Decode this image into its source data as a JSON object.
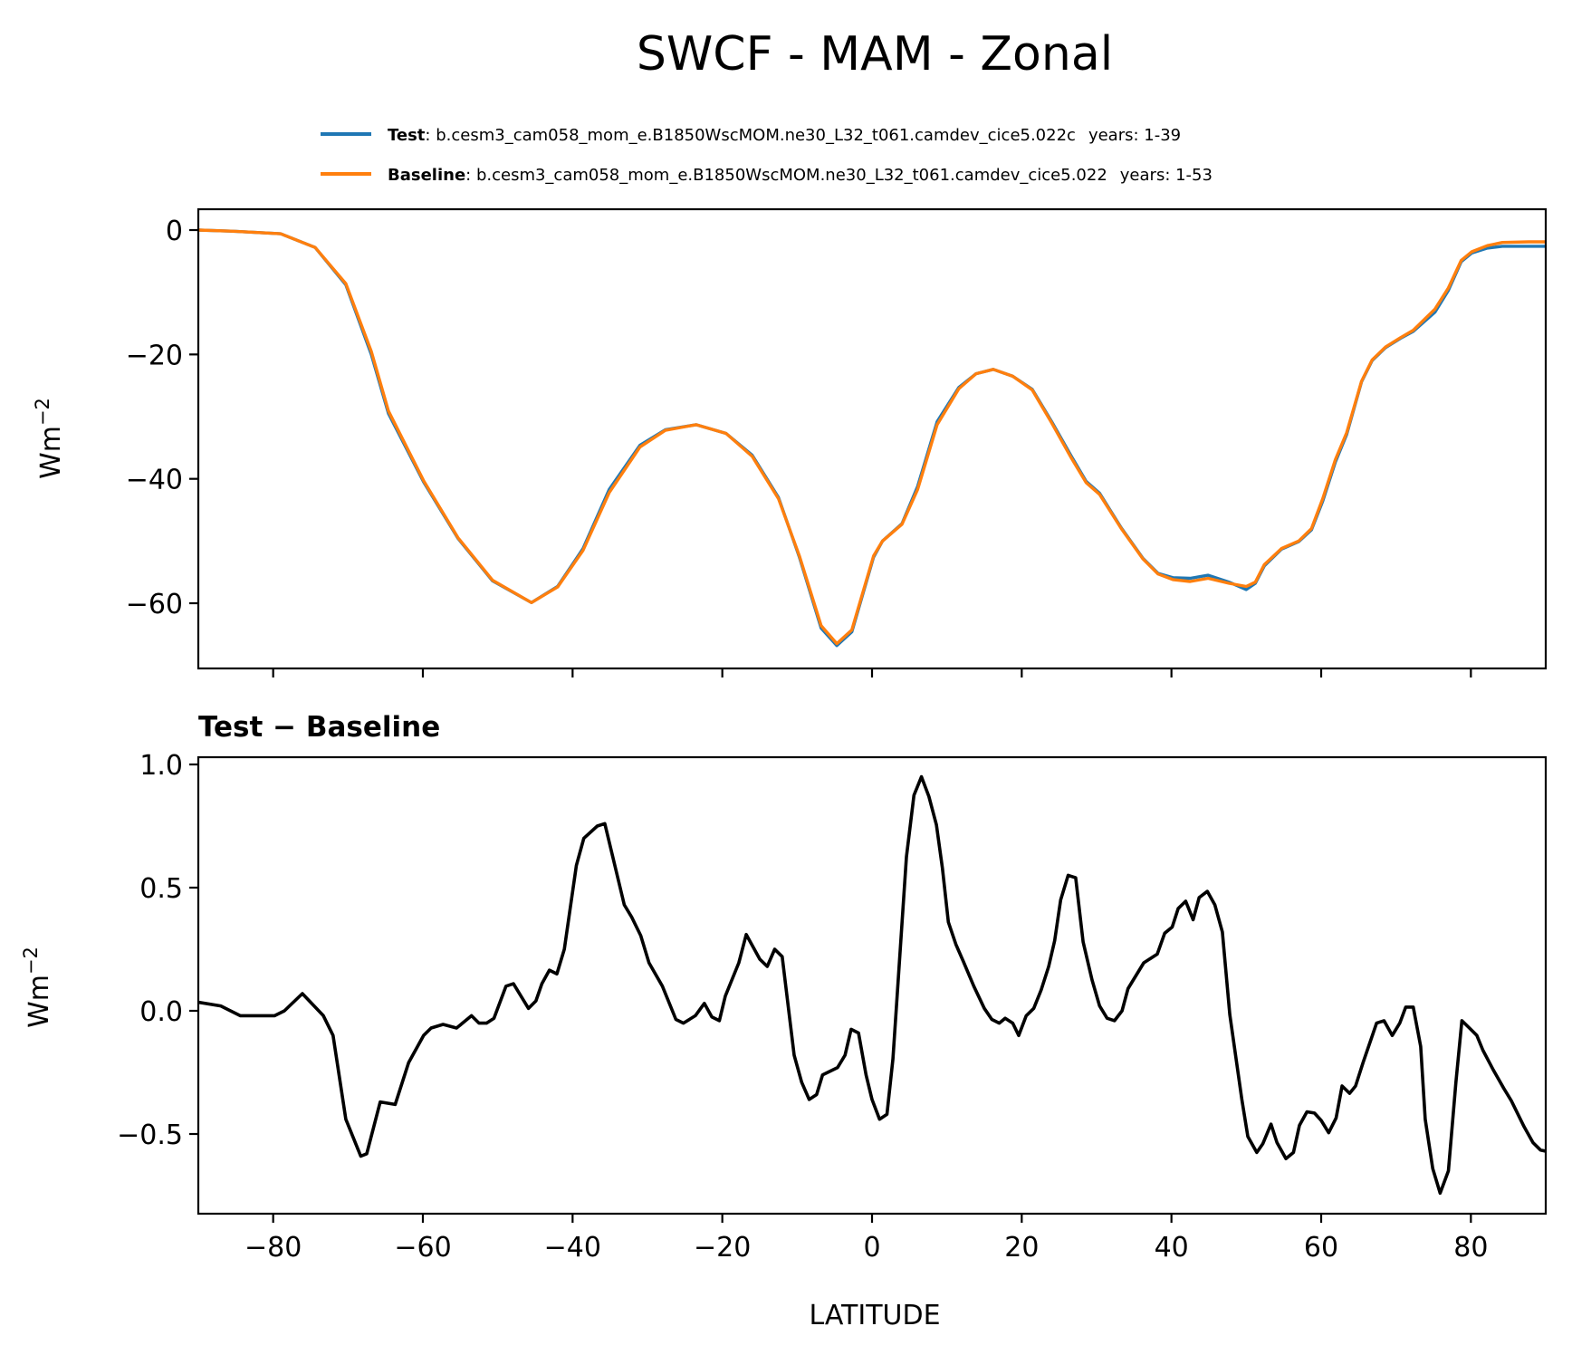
{
  "chart_data": [
    {
      "type": "line",
      "title": "SWCF - MAM - Zonal",
      "xlabel": "",
      "ylabel": "Wm^-2",
      "xlim": [
        -90,
        90
      ],
      "ylim": [
        -70,
        3
      ],
      "yticks": [
        0,
        -20,
        -40,
        -60
      ],
      "ytick_labels": [
        "0",
        "−20",
        "−40",
        "−60"
      ],
      "xticks": [
        -80,
        -60,
        -40,
        -20,
        0,
        20,
        40,
        60,
        80
      ],
      "show_xtick_labels": false,
      "grid": false,
      "legend": {
        "placement": "top-right",
        "entries": [
          {
            "name": "Test",
            "description": "b.cesm3_cam058_mom_e.B1850WscMOM.ne30_L32_t061.camdev_cice5.022c",
            "years": "years: 1-39",
            "color": "#1f77b4"
          },
          {
            "name": "Baseline",
            "description": "b.cesm3_cam058_mom_e.B1850WscMOM.ne30_L32_t061.camdev_cice5.022",
            "years": "years: 1-53",
            "color": "#ff7f0e"
          }
        ]
      },
      "series": [
        {
          "name": "Test",
          "color": "#1f77b4",
          "x": [
            -90,
            -85,
            -79,
            -74.4,
            -70.3,
            -66.9,
            -64.6,
            -59.9,
            -55.3,
            -50.7,
            -45.5,
            -42,
            -38.6,
            -35.1,
            -31,
            -27.6,
            -23.5,
            -19.5,
            -16,
            -12.5,
            -9.7,
            -6.8,
            -4.7,
            -2.7,
            0.2,
            1.4,
            4,
            6.1,
            8.7,
            11.6,
            13.9,
            16.2,
            18.8,
            21.4,
            24,
            26.6,
            28.6,
            30.4,
            33.3,
            36.2,
            38.2,
            40.2,
            42.5,
            44.9,
            47.7,
            50,
            51.2,
            52.4,
            54.7,
            57,
            58.7,
            60.2,
            61.9,
            63.4,
            65.4,
            66.8,
            68.6,
            70.6,
            72.3,
            75.2,
            77,
            78.7,
            80.1,
            82.2,
            84.2,
            87.7,
            90
          ],
          "y": [
            0,
            -0.2,
            -0.6,
            -2.8,
            -8.8,
            -20.0,
            -29.5,
            -40.5,
            -49.6,
            -56.4,
            -59.9,
            -57.3,
            -51.2,
            -41.7,
            -34.6,
            -32.1,
            -31.3,
            -32.7,
            -36.2,
            -43.0,
            -52.6,
            -64.0,
            -66.8,
            -64.6,
            -52.6,
            -50.0,
            -47.2,
            -41.2,
            -30.8,
            -25.3,
            -23.1,
            -22.4,
            -23.5,
            -25.6,
            -30.8,
            -36.3,
            -40.4,
            -42.3,
            -47.9,
            -52.8,
            -55.2,
            -55.9,
            -56.0,
            -55.5,
            -56.6,
            -57.8,
            -56.8,
            -54.0,
            -51.3,
            -50.1,
            -48.2,
            -43.6,
            -37.3,
            -32.9,
            -24.4,
            -21.0,
            -18.9,
            -17.4,
            -16.3,
            -13.2,
            -9.7,
            -5.1,
            -3.7,
            -2.9,
            -2.6,
            -2.6,
            -2.6
          ]
        },
        {
          "name": "Baseline",
          "color": "#ff7f0e",
          "x": [
            -90,
            -85,
            -79,
            -74.4,
            -70.3,
            -66.9,
            -64.6,
            -59.9,
            -55.3,
            -50.7,
            -45.5,
            -42,
            -38.6,
            -35.1,
            -31,
            -27.6,
            -23.5,
            -19.5,
            -16,
            -12.5,
            -9.7,
            -6.8,
            -4.7,
            -2.7,
            0.2,
            1.4,
            4,
            6.1,
            8.7,
            11.6,
            13.9,
            16.2,
            18.8,
            21.4,
            24,
            26.6,
            28.6,
            30.4,
            33.3,
            36.2,
            38.2,
            40.2,
            42.5,
            44.9,
            47.7,
            50,
            51.2,
            52.4,
            54.7,
            57,
            58.7,
            60.2,
            61.9,
            63.4,
            65.4,
            66.8,
            68.6,
            70.6,
            72.3,
            75.2,
            77,
            78.7,
            80.1,
            82.2,
            84.2,
            87.7,
            90
          ],
          "y": [
            0,
            -0.2,
            -0.6,
            -2.8,
            -8.6,
            -19.5,
            -29.1,
            -40.3,
            -49.5,
            -56.3,
            -59.9,
            -57.4,
            -51.5,
            -42.2,
            -34.9,
            -32.2,
            -31.3,
            -32.7,
            -36.4,
            -43.2,
            -52.4,
            -63.6,
            -66.5,
            -64.3,
            -52.4,
            -50.0,
            -47.3,
            -41.7,
            -31.3,
            -25.5,
            -23.1,
            -22.4,
            -23.5,
            -25.7,
            -31.0,
            -36.6,
            -40.6,
            -42.5,
            -48.0,
            -52.9,
            -55.3,
            -56.2,
            -56.5,
            -56.0,
            -56.8,
            -57.3,
            -56.6,
            -53.8,
            -51.2,
            -50.0,
            -48.0,
            -43.2,
            -36.9,
            -32.6,
            -24.3,
            -20.9,
            -18.8,
            -17.3,
            -16.1,
            -12.7,
            -9.3,
            -4.9,
            -3.5,
            -2.5,
            -2.0,
            -1.9,
            -1.9
          ]
        }
      ]
    },
    {
      "type": "line",
      "title": "Test − Baseline",
      "xlabel": "LATITUDE",
      "ylabel": "Wm^-2",
      "xlim": [
        -90,
        90
      ],
      "ylim": [
        -0.85,
        1.03
      ],
      "yticks": [
        1.0,
        0.5,
        0.0,
        -0.5
      ],
      "ytick_labels": [
        "1.0",
        "0.5",
        "0.0",
        "−0.5"
      ],
      "xticks": [
        -80,
        -60,
        -40,
        -20,
        0,
        20,
        40,
        60,
        80
      ],
      "xtick_labels": [
        "−80",
        "−60",
        "−40",
        "−20",
        "0",
        "20",
        "40",
        "60",
        "80"
      ],
      "grid": false,
      "series": [
        {
          "name": "Test - Baseline",
          "color": "#000000",
          "x": [
            -90,
            -87,
            -84.4,
            -79.8,
            -78.5,
            -76.1,
            -73.3,
            -72,
            -70.3,
            -68.3,
            -67.5,
            -65.7,
            -63.7,
            -61.9,
            -59.9,
            -58.9,
            -57.3,
            -55.5,
            -53.5,
            -52.5,
            -51.5,
            -50.5,
            -48.9,
            -47.9,
            -45.9,
            -44.9,
            -44.1,
            -43.1,
            -42.1,
            -41.1,
            -39.5,
            -38.5,
            -36.7,
            -35.7,
            -33.1,
            -32.1,
            -30.9,
            -29.8,
            -28,
            -26.2,
            -25.2,
            -23.6,
            -22.4,
            -21.4,
            -20.4,
            -19.6,
            -17.8,
            -16.8,
            -15,
            -14,
            -13,
            -12,
            -10.4,
            -9.4,
            -8.4,
            -7.4,
            -6.6,
            -4.6,
            -3.6,
            -2.8,
            -1.8,
            -0.8,
            0,
            1,
            2,
            2.8,
            4.6,
            5.6,
            6.6,
            7.6,
            8.6,
            9.4,
            10.2,
            11.2,
            12.2,
            13.6,
            15,
            16,
            17,
            17.8,
            18.8,
            19.6,
            20.6,
            21.6,
            22.6,
            23.6,
            24.4,
            25.2,
            26.2,
            27.2,
            28.2,
            29.4,
            30.4,
            31.4,
            32.4,
            33.4,
            34.2,
            36.3,
            38.1,
            39.1,
            40.1,
            40.9,
            41.9,
            42.9,
            43.7,
            44.8,
            45.8,
            46.8,
            47.8,
            49.4,
            50.2,
            51.4,
            52.2,
            53.3,
            54.1,
            55.3,
            56.3,
            57.1,
            58.1,
            59.1,
            60,
            61,
            62,
            62.8,
            63.8,
            64.6,
            65.6,
            67.4,
            68.4,
            69.5,
            70.5,
            71.3,
            72.3,
            73.3,
            73.9,
            74.9,
            75.9,
            77,
            78,
            78.8,
            79.8,
            80.8,
            81.6,
            83,
            84.4,
            85.4,
            87.1,
            88.3,
            89.3,
            90
          ],
          "y": [
            0.035,
            0.02,
            -0.02,
            -0.02,
            0.0,
            0.07,
            -0.02,
            -0.1,
            -0.44,
            -0.59,
            -0.58,
            -0.37,
            -0.38,
            -0.21,
            -0.1,
            -0.07,
            -0.055,
            -0.07,
            -0.02,
            -0.05,
            -0.05,
            -0.03,
            0.1,
            0.11,
            0.01,
            0.04,
            0.11,
            0.165,
            0.15,
            0.25,
            0.59,
            0.7,
            0.75,
            0.76,
            0.43,
            0.38,
            0.305,
            0.195,
            0.1,
            -0.035,
            -0.05,
            -0.02,
            0.03,
            -0.025,
            -0.04,
            0.06,
            0.195,
            0.31,
            0.21,
            0.18,
            0.25,
            0.22,
            -0.18,
            -0.29,
            -0.36,
            -0.34,
            -0.26,
            -0.23,
            -0.18,
            -0.075,
            -0.09,
            -0.26,
            -0.36,
            -0.44,
            -0.42,
            -0.195,
            0.625,
            0.875,
            0.95,
            0.87,
            0.755,
            0.58,
            0.36,
            0.27,
            0.2,
            0.1,
            0.01,
            -0.035,
            -0.05,
            -0.03,
            -0.05,
            -0.1,
            -0.02,
            0.01,
            0.085,
            0.18,
            0.285,
            0.45,
            0.55,
            0.54,
            0.28,
            0.125,
            0.02,
            -0.03,
            -0.04,
            0.0,
            0.09,
            0.195,
            0.23,
            0.315,
            0.34,
            0.415,
            0.445,
            0.37,
            0.46,
            0.485,
            0.43,
            0.32,
            -0.015,
            -0.36,
            -0.51,
            -0.575,
            -0.54,
            -0.46,
            -0.535,
            -0.6,
            -0.575,
            -0.465,
            -0.41,
            -0.415,
            -0.445,
            -0.495,
            -0.435,
            -0.305,
            -0.335,
            -0.305,
            -0.21,
            -0.05,
            -0.04,
            -0.1,
            -0.05,
            0.015,
            0.015,
            -0.145,
            -0.44,
            -0.64,
            -0.74,
            -0.65,
            -0.29,
            -0.04,
            -0.07,
            -0.1,
            -0.16,
            -0.24,
            -0.315,
            -0.365,
            -0.47,
            -0.535,
            -0.565,
            -0.57
          ]
        }
      ]
    }
  ]
}
